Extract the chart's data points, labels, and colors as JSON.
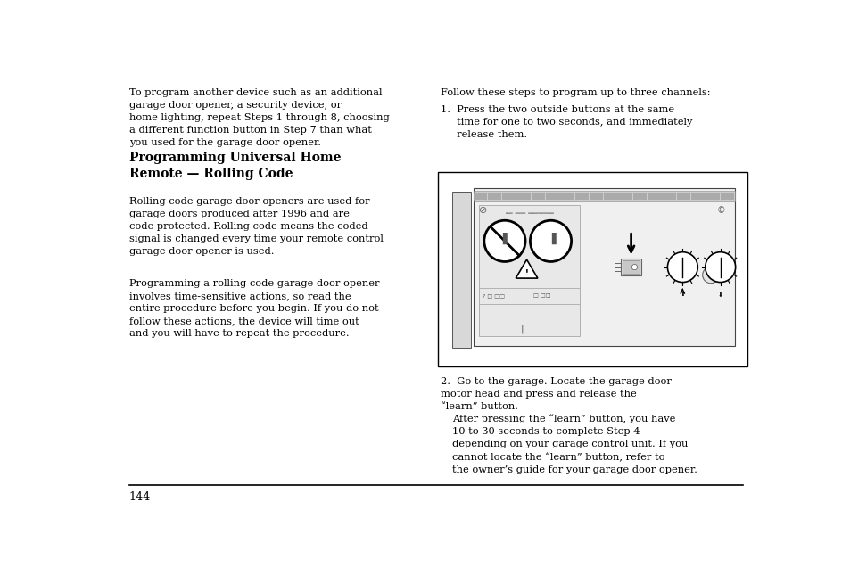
{
  "background_color": "#ffffff",
  "page_number": "144",
  "font_size_body": 8.2,
  "font_size_heading": 10.0,
  "text_color": "#000000",
  "left_para1": "To program another device such as an additional\ngarage door opener, a security device, or\nhome lighting, repeat Steps 1 through 8, choosing\na different function button in Step 7 than what\nyou used for the garage door opener.",
  "heading1": "Programming Universal Home\nRemote — Rolling Code",
  "left_para2": "Rolling code garage door openers are used for\ngarage doors produced after 1996 and are\ncode protected. Rolling code means the coded\nsignal is changed every time your remote control\ngarage door opener is used.",
  "left_para3": "Programming a rolling code garage door opener\ninvolves time-sensitive actions, so read the\nentire procedure before you begin. If you do not\nfollow these actions, the device will time out\nand you will have to repeat the procedure.",
  "right_intro": "Follow these steps to program up to three channels:",
  "step1": "1.  Press the two outside buttons at the same\n     time for one to two seconds, and immediately\n     release them.",
  "step2_num": "2.",
  "step2_text": "Go to the garage. Locate the garage door\nmotor head and press and release the\n“learn” button.",
  "step2b": "After pressing the “learn” button, you have\n10 to 30 seconds to complete Step 4\ndepending on your garage control unit. If you\ncannot locate the “learn” button, refer to\nthe owner’s guide for your garage door opener."
}
